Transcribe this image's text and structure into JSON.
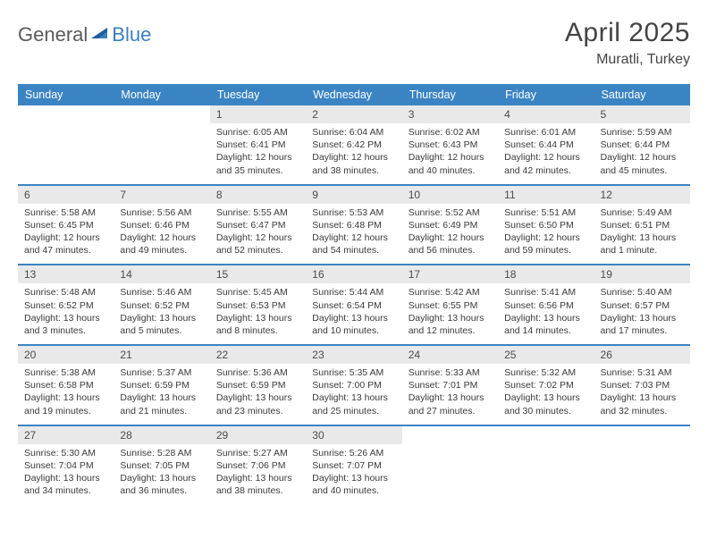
{
  "brand": {
    "part1": "General",
    "part2": "Blue"
  },
  "title": "April 2025",
  "location": "Muratli, Turkey",
  "colors": {
    "header_bg": "#3b84c4",
    "header_text": "#ffffff",
    "daynum_bg": "#e9e9e9",
    "row_divider": "#3b84c4",
    "body_text": "#3a3a3a",
    "logo_gray": "#5a5a5a",
    "logo_blue": "#3a7fc0"
  },
  "typography": {
    "title_fontsize": 30,
    "location_fontsize": 16,
    "dayheader_fontsize": 12.5,
    "daynum_fontsize": 12,
    "body_fontsize": 10.5
  },
  "day_headers": [
    "Sunday",
    "Monday",
    "Tuesday",
    "Wednesday",
    "Thursday",
    "Friday",
    "Saturday"
  ],
  "weeks": [
    [
      null,
      null,
      {
        "n": "1",
        "sr": "6:05 AM",
        "ss": "6:41 PM",
        "dl": "12 hours and 35 minutes."
      },
      {
        "n": "2",
        "sr": "6:04 AM",
        "ss": "6:42 PM",
        "dl": "12 hours and 38 minutes."
      },
      {
        "n": "3",
        "sr": "6:02 AM",
        "ss": "6:43 PM",
        "dl": "12 hours and 40 minutes."
      },
      {
        "n": "4",
        "sr": "6:01 AM",
        "ss": "6:44 PM",
        "dl": "12 hours and 42 minutes."
      },
      {
        "n": "5",
        "sr": "5:59 AM",
        "ss": "6:44 PM",
        "dl": "12 hours and 45 minutes."
      }
    ],
    [
      {
        "n": "6",
        "sr": "5:58 AM",
        "ss": "6:45 PM",
        "dl": "12 hours and 47 minutes."
      },
      {
        "n": "7",
        "sr": "5:56 AM",
        "ss": "6:46 PM",
        "dl": "12 hours and 49 minutes."
      },
      {
        "n": "8",
        "sr": "5:55 AM",
        "ss": "6:47 PM",
        "dl": "12 hours and 52 minutes."
      },
      {
        "n": "9",
        "sr": "5:53 AM",
        "ss": "6:48 PM",
        "dl": "12 hours and 54 minutes."
      },
      {
        "n": "10",
        "sr": "5:52 AM",
        "ss": "6:49 PM",
        "dl": "12 hours and 56 minutes."
      },
      {
        "n": "11",
        "sr": "5:51 AM",
        "ss": "6:50 PM",
        "dl": "12 hours and 59 minutes."
      },
      {
        "n": "12",
        "sr": "5:49 AM",
        "ss": "6:51 PM",
        "dl": "13 hours and 1 minute."
      }
    ],
    [
      {
        "n": "13",
        "sr": "5:48 AM",
        "ss": "6:52 PM",
        "dl": "13 hours and 3 minutes."
      },
      {
        "n": "14",
        "sr": "5:46 AM",
        "ss": "6:52 PM",
        "dl": "13 hours and 5 minutes."
      },
      {
        "n": "15",
        "sr": "5:45 AM",
        "ss": "6:53 PM",
        "dl": "13 hours and 8 minutes."
      },
      {
        "n": "16",
        "sr": "5:44 AM",
        "ss": "6:54 PM",
        "dl": "13 hours and 10 minutes."
      },
      {
        "n": "17",
        "sr": "5:42 AM",
        "ss": "6:55 PM",
        "dl": "13 hours and 12 minutes."
      },
      {
        "n": "18",
        "sr": "5:41 AM",
        "ss": "6:56 PM",
        "dl": "13 hours and 14 minutes."
      },
      {
        "n": "19",
        "sr": "5:40 AM",
        "ss": "6:57 PM",
        "dl": "13 hours and 17 minutes."
      }
    ],
    [
      {
        "n": "20",
        "sr": "5:38 AM",
        "ss": "6:58 PM",
        "dl": "13 hours and 19 minutes."
      },
      {
        "n": "21",
        "sr": "5:37 AM",
        "ss": "6:59 PM",
        "dl": "13 hours and 21 minutes."
      },
      {
        "n": "22",
        "sr": "5:36 AM",
        "ss": "6:59 PM",
        "dl": "13 hours and 23 minutes."
      },
      {
        "n": "23",
        "sr": "5:35 AM",
        "ss": "7:00 PM",
        "dl": "13 hours and 25 minutes."
      },
      {
        "n": "24",
        "sr": "5:33 AM",
        "ss": "7:01 PM",
        "dl": "13 hours and 27 minutes."
      },
      {
        "n": "25",
        "sr": "5:32 AM",
        "ss": "7:02 PM",
        "dl": "13 hours and 30 minutes."
      },
      {
        "n": "26",
        "sr": "5:31 AM",
        "ss": "7:03 PM",
        "dl": "13 hours and 32 minutes."
      }
    ],
    [
      {
        "n": "27",
        "sr": "5:30 AM",
        "ss": "7:04 PM",
        "dl": "13 hours and 34 minutes."
      },
      {
        "n": "28",
        "sr": "5:28 AM",
        "ss": "7:05 PM",
        "dl": "13 hours and 36 minutes."
      },
      {
        "n": "29",
        "sr": "5:27 AM",
        "ss": "7:06 PM",
        "dl": "13 hours and 38 minutes."
      },
      {
        "n": "30",
        "sr": "5:26 AM",
        "ss": "7:07 PM",
        "dl": "13 hours and 40 minutes."
      },
      null,
      null,
      null
    ]
  ],
  "labels": {
    "sunrise": "Sunrise:",
    "sunset": "Sunset:",
    "daylight": "Daylight:"
  }
}
